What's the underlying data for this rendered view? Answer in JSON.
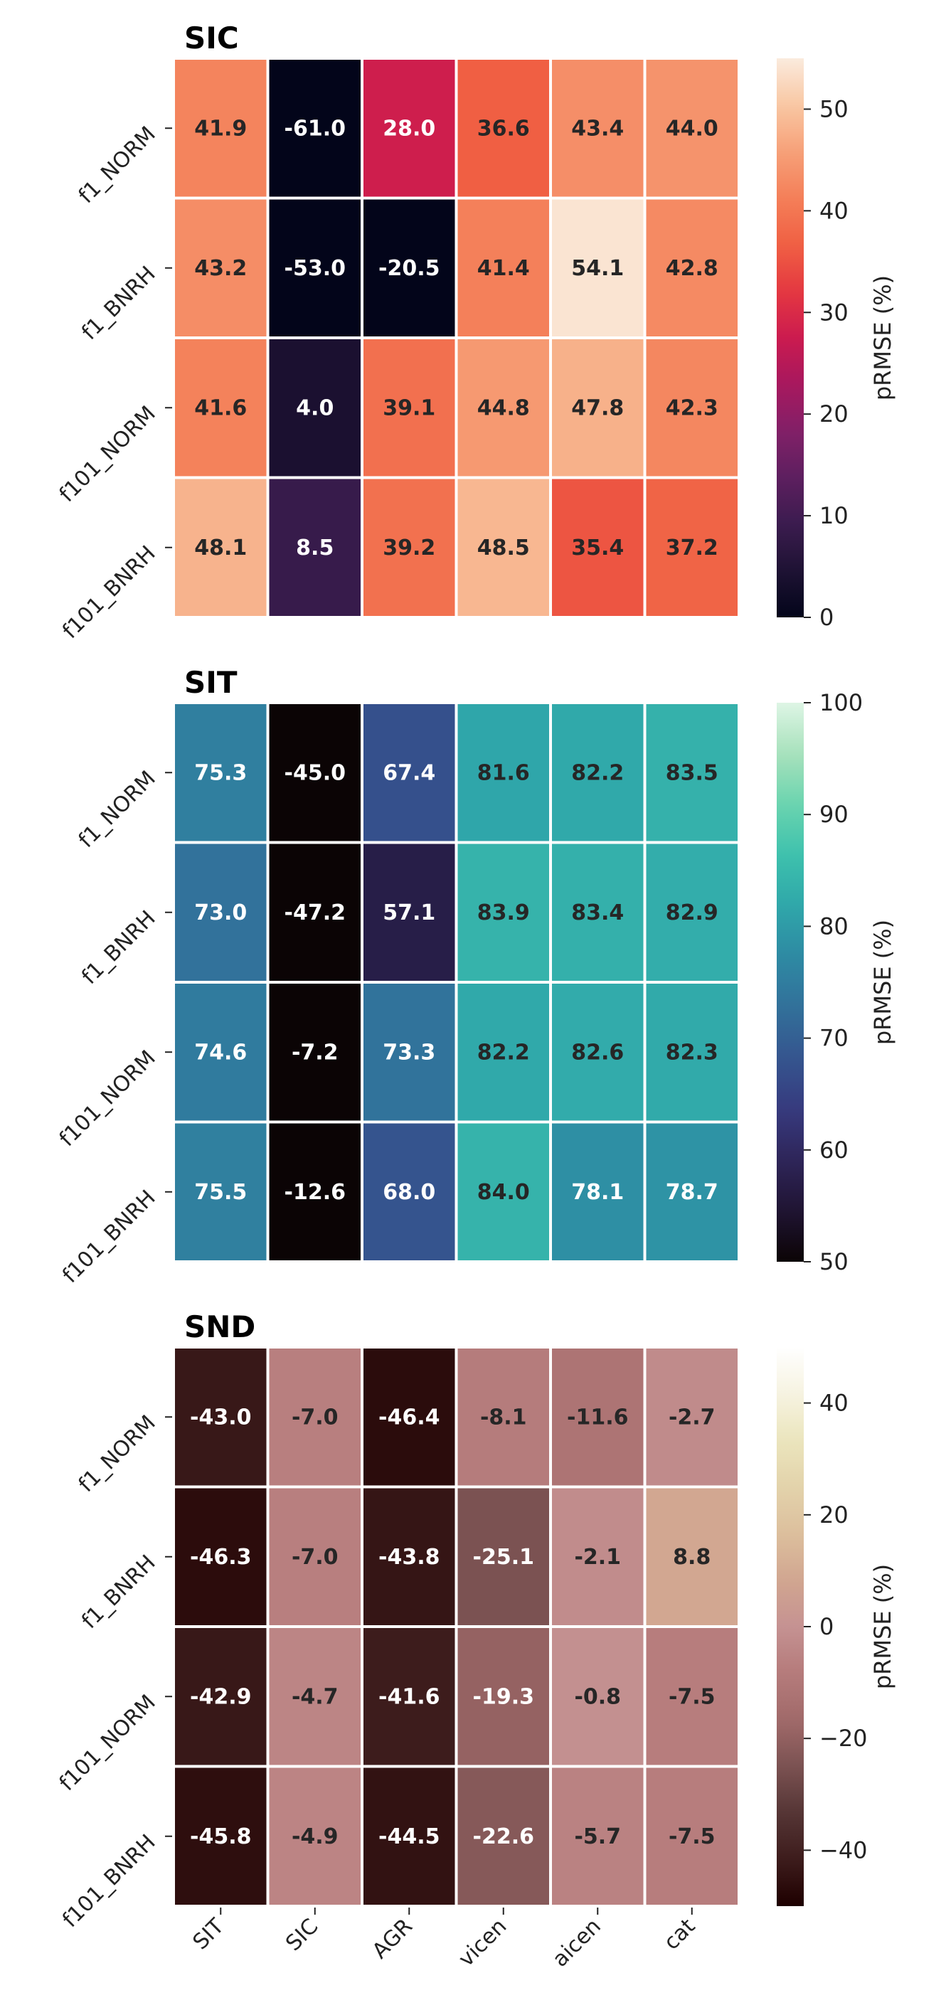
{
  "chart_data": [
    {
      "type": "heatmap",
      "title": "SIC",
      "rows": [
        "f1_NORM",
        "f1_BNRH",
        "f101_NORM",
        "f101_BNRH"
      ],
      "columns": [
        "SIT",
        "SIC",
        "AGR",
        "vicen",
        "aicen",
        "cat"
      ],
      "values": [
        [
          41.9,
          -61.0,
          28.0,
          36.6,
          43.4,
          44.0
        ],
        [
          43.2,
          -53.0,
          -20.5,
          41.4,
          54.1,
          42.8
        ],
        [
          41.6,
          4.0,
          39.1,
          44.8,
          47.8,
          42.3
        ],
        [
          48.1,
          8.5,
          39.2,
          48.5,
          35.4,
          37.2
        ]
      ],
      "labels": [
        [
          "41.9",
          "-61.0",
          "28.0",
          "36.6",
          "43.4",
          "44.0"
        ],
        [
          "43.2",
          "-53.0",
          "-20.5",
          "41.4",
          "54.1",
          "42.8"
        ],
        [
          "41.6",
          "4.0",
          "39.1",
          "44.8",
          "47.8",
          "42.3"
        ],
        [
          "48.1",
          "8.5",
          "39.2",
          "48.5",
          "35.4",
          "37.2"
        ]
      ],
      "colormap": "rocket",
      "vmin": 0,
      "vmax": 55,
      "colorbar_ticks": [
        0,
        10,
        20,
        30,
        40,
        50
      ],
      "colorbar_tick_labels": [
        "0",
        "10",
        "20",
        "30",
        "40",
        "50"
      ],
      "colorbar_label": "pRMSE (%)"
    },
    {
      "type": "heatmap",
      "title": "SIT",
      "rows": [
        "f1_NORM",
        "f1_BNRH",
        "f101_NORM",
        "f101_BNRH"
      ],
      "columns": [
        "SIT",
        "SIC",
        "AGR",
        "vicen",
        "aicen",
        "cat"
      ],
      "values": [
        [
          75.3,
          -45.0,
          67.4,
          81.6,
          82.2,
          83.5
        ],
        [
          73.0,
          -47.2,
          57.1,
          83.9,
          83.4,
          82.9
        ],
        [
          74.6,
          -7.2,
          73.3,
          82.2,
          82.6,
          82.3
        ],
        [
          75.5,
          -12.6,
          68.0,
          84.0,
          78.1,
          78.7
        ]
      ],
      "labels": [
        [
          "75.3",
          "-45.0",
          "67.4",
          "81.6",
          "82.2",
          "83.5"
        ],
        [
          "73.0",
          "-47.2",
          "57.1",
          "83.9",
          "83.4",
          "82.9"
        ],
        [
          "74.6",
          "-7.2",
          "73.3",
          "82.2",
          "82.6",
          "82.3"
        ],
        [
          "75.5",
          "-12.6",
          "68.0",
          "84.0",
          "78.1",
          "78.7"
        ]
      ],
      "colormap": "mako",
      "vmin": 50,
      "vmax": 100,
      "colorbar_ticks": [
        50,
        60,
        70,
        80,
        90,
        100
      ],
      "colorbar_tick_labels": [
        "50",
        "60",
        "70",
        "80",
        "90",
        "100"
      ],
      "colorbar_label": "pRMSE (%)"
    },
    {
      "type": "heatmap",
      "title": "SND",
      "rows": [
        "f1_NORM",
        "f1_BNRH",
        "f101_NORM",
        "f101_BNRH"
      ],
      "columns": [
        "SIT",
        "SIC",
        "AGR",
        "vicen",
        "aicen",
        "cat"
      ],
      "values": [
        [
          -43.0,
          -7.0,
          -46.4,
          -8.1,
          -11.6,
          -2.7
        ],
        [
          -46.3,
          -7.0,
          -43.8,
          -25.1,
          -2.1,
          8.8
        ],
        [
          -42.9,
          -4.7,
          -41.6,
          -19.3,
          -0.8,
          -7.5
        ],
        [
          -45.8,
          -4.9,
          -44.5,
          -22.6,
          -5.7,
          -7.5
        ]
      ],
      "labels": [
        [
          "-43.0",
          "-7.0",
          "-46.4",
          "-8.1",
          "-11.6",
          "-2.7"
        ],
        [
          "-46.3",
          "-7.0",
          "-43.8",
          "-25.1",
          "-2.1",
          "8.8"
        ],
        [
          "-42.9",
          "-4.7",
          "-41.6",
          "-19.3",
          "-0.8",
          "-7.5"
        ],
        [
          "-45.8",
          "-4.9",
          "-44.5",
          "-22.6",
          "-5.7",
          "-7.5"
        ]
      ],
      "colormap": "pink",
      "vmin": -50,
      "vmax": 50,
      "colorbar_ticks": [
        -40,
        -20,
        0,
        20,
        40
      ],
      "colorbar_tick_labels": [
        "−40",
        "−20",
        "0",
        "20",
        "40"
      ],
      "colorbar_label": "pRMSE (%)"
    }
  ]
}
